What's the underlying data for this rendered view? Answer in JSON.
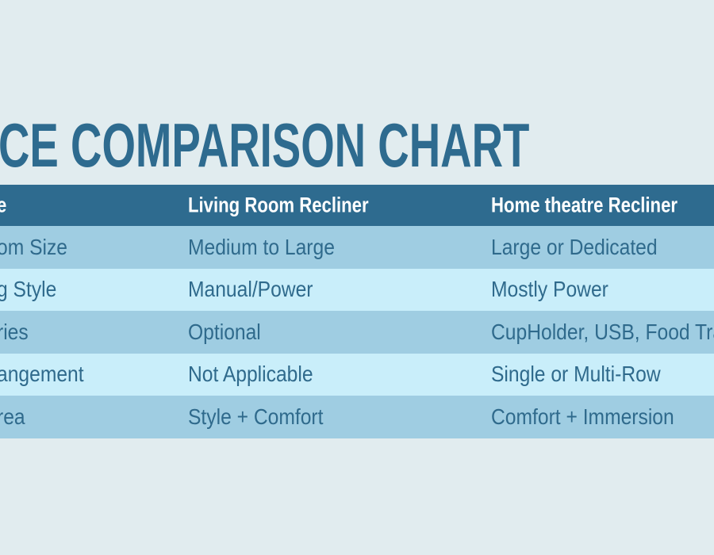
{
  "title": "CE COMPARISON CHART",
  "table": {
    "header": [
      "e",
      "Living Room Recliner",
      "Home theatre Recliner"
    ],
    "rows": [
      [
        "om Size",
        "Medium to Large",
        "Large or Dedicated"
      ],
      [
        "g Style",
        "Manual/Power",
        "Mostly Power"
      ],
      [
        "ries",
        "Optional",
        "CupHolder, USB, Food Tra"
      ],
      [
        "angement",
        "Not Applicable",
        "Single or Multi-Row"
      ],
      [
        "rea",
        "Style + Comfort",
        "Comfort + Immersion"
      ]
    ]
  }
}
